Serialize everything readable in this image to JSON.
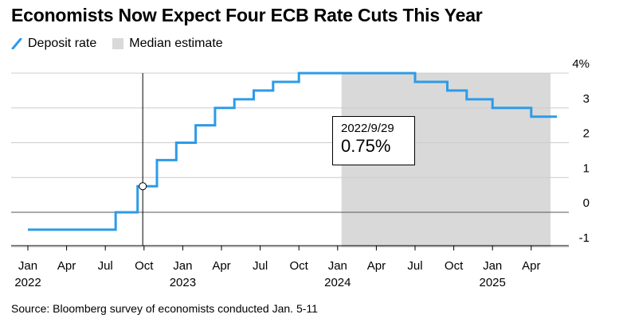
{
  "title": "Economists Now Expect Four ECB Rate Cuts This Year",
  "legend": {
    "deposit_rate_label": "Deposit rate",
    "median_label": "Median estimate"
  },
  "annotation": {
    "date": "2022/9/29",
    "value": "0.75%"
  },
  "source": "Source: Bloomberg survey of economists conducted Jan. 5-11",
  "colors": {
    "line": "#2d9be8",
    "shade": "#d9d9d9",
    "grid": "#cccccc"
  },
  "chart_data": {
    "type": "line",
    "title": "Economists Now Expect Four ECB Rate Cuts This Year",
    "xlabel": "",
    "ylabel": "",
    "ylim": [
      -1,
      4
    ],
    "xlim_months": [
      0,
      40.5
    ],
    "y_ticks": [
      {
        "value": 4,
        "label": "4%"
      },
      {
        "value": 3,
        "label": "3"
      },
      {
        "value": 2,
        "label": "2"
      },
      {
        "value": 1,
        "label": "1"
      },
      {
        "value": 0,
        "label": "0"
      },
      {
        "value": -1,
        "label": "-1"
      }
    ],
    "x_ticks": [
      {
        "month": 0,
        "label": "Jan",
        "year": "2022"
      },
      {
        "month": 3,
        "label": "Apr",
        "year": ""
      },
      {
        "month": 6,
        "label": "Jul",
        "year": ""
      },
      {
        "month": 9,
        "label": "Oct",
        "year": ""
      },
      {
        "month": 12,
        "label": "Jan",
        "year": "2023"
      },
      {
        "month": 15,
        "label": "Apr",
        "year": ""
      },
      {
        "month": 18,
        "label": "Jul",
        "year": ""
      },
      {
        "month": 21,
        "label": "Oct",
        "year": ""
      },
      {
        "month": 24,
        "label": "Jan",
        "year": "2024"
      },
      {
        "month": 27,
        "label": "Apr",
        "year": ""
      },
      {
        "month": 30,
        "label": "Jul",
        "year": ""
      },
      {
        "month": 33,
        "label": "Oct",
        "year": ""
      },
      {
        "month": 36,
        "label": "Jan",
        "year": "2025"
      },
      {
        "month": 39,
        "label": "Apr",
        "year": ""
      }
    ],
    "series": [
      {
        "name": "Deposit rate",
        "step": true,
        "points": [
          {
            "month": 0,
            "value": -0.5
          },
          {
            "month": 6.8,
            "value": 0
          },
          {
            "month": 8.5,
            "value": 0.75
          },
          {
            "month": 10.0,
            "value": 1.5
          },
          {
            "month": 11.5,
            "value": 2.0
          },
          {
            "month": 13.0,
            "value": 2.5
          },
          {
            "month": 14.5,
            "value": 3.0
          },
          {
            "month": 16.0,
            "value": 3.25
          },
          {
            "month": 17.5,
            "value": 3.5
          },
          {
            "month": 19.0,
            "value": 3.75
          },
          {
            "month": 21.0,
            "value": 4.0
          },
          {
            "month": 30.0,
            "value": 3.75
          },
          {
            "month": 32.5,
            "value": 3.5
          },
          {
            "month": 34.0,
            "value": 3.25
          },
          {
            "month": 36.0,
            "value": 3.0
          },
          {
            "month": 39.0,
            "value": 2.75
          },
          {
            "month": 41.0,
            "value": 2.75
          }
        ]
      }
    ],
    "shaded_region": {
      "label": "Median estimate",
      "start_month": 24.3,
      "end_month": 40.5
    },
    "crosshair": {
      "month": 8.9,
      "value": 0.75,
      "date": "2022/9/29"
    }
  }
}
